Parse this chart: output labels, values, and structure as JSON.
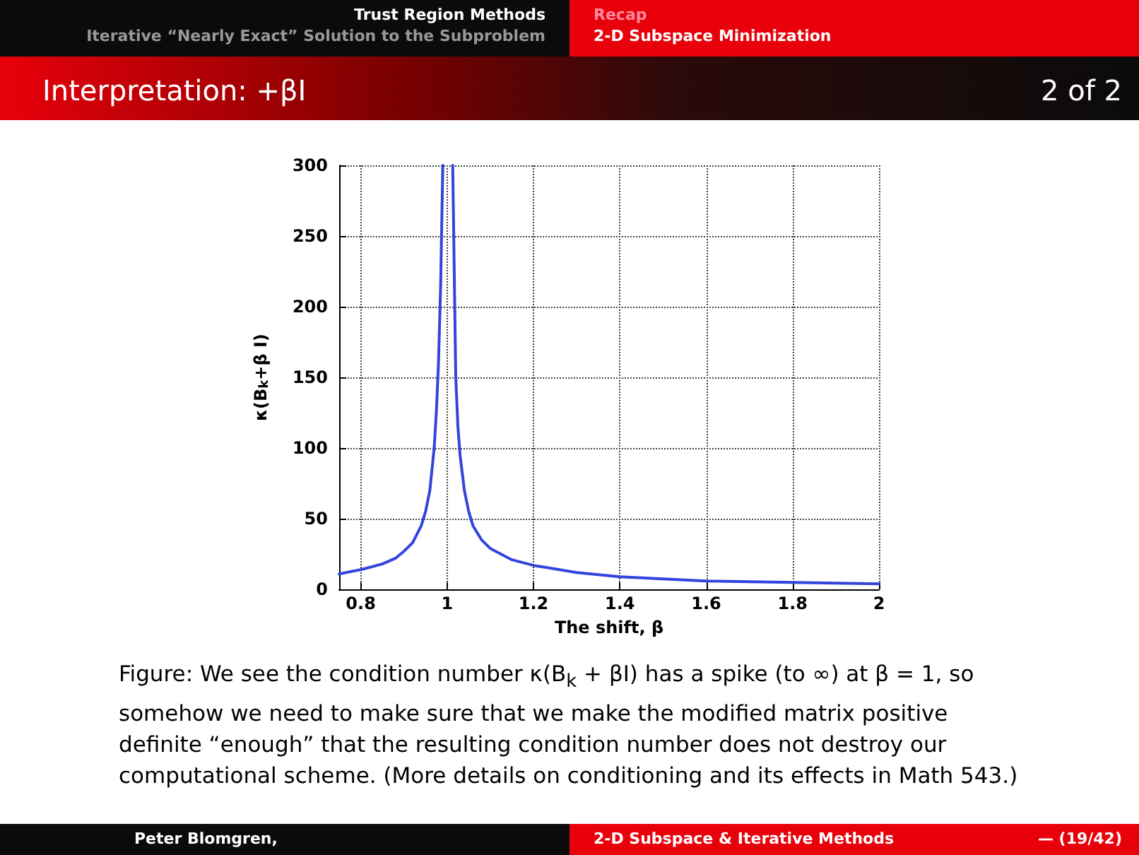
{
  "chart_data": {
    "type": "line",
    "title": "Interpretation: +βI",
    "xlabel": "The shift, β",
    "ylabel": "κ(B$_{k}$+β I)",
    "annotations": [
      "Trust Region Methods",
      "Iterative “Nearly Exact” Solution to the Subproblem",
      "Recap",
      "2-D Subspace Minimization",
      "2 of 2",
      "Figure: We see the condition number κ(B$_{k}$ + βI) has a spike (to ∞) at β = 1, so somehow we need to make sure that we make the modified matrix positive definite “enough” that the resulting condition number does not destroy our computational scheme. (More details on conditioning and its effects in Math 543.)",
      "Peter Blomgren,",
      "2-D Subspace & Iterative Methods",
      "— (19/42)"
    ],
    "x": [
      0.75,
      0.8,
      0.85,
      0.88,
      0.9,
      0.92,
      0.94,
      0.95,
      0.96,
      0.97,
      0.975,
      0.98,
      0.985,
      0.99,
      1.0,
      1.013,
      1.02,
      1.025,
      1.03,
      1.04,
      1.05,
      1.06,
      1.08,
      1.1,
      1.15,
      1.2,
      1.3,
      1.4,
      1.5,
      1.6,
      1.7,
      1.8,
      1.9,
      2.0
    ],
    "series": [
      {
        "color": "#3344dd",
        "values": [
          11,
          14,
          18,
          22,
          27,
          33,
          45,
          55,
          70,
          100,
          125,
          160,
          215,
          300,
          null,
          300,
          150,
          115,
          95,
          70,
          55,
          45,
          35,
          29,
          21,
          17,
          12,
          9,
          7.5,
          6,
          5.5,
          5,
          4.5,
          4
        ]
      }
    ],
    "xlim": [
      0.75,
      2
    ],
    "ylim": [
      0,
      300
    ],
    "xticks": [
      0.8,
      1,
      1.2,
      1.4,
      1.6,
      1.8,
      2
    ],
    "yticks": [
      0,
      50,
      100,
      150,
      200,
      250,
      300
    ],
    "grid": true,
    "marker": "none",
    "line_style": "solid"
  }
}
